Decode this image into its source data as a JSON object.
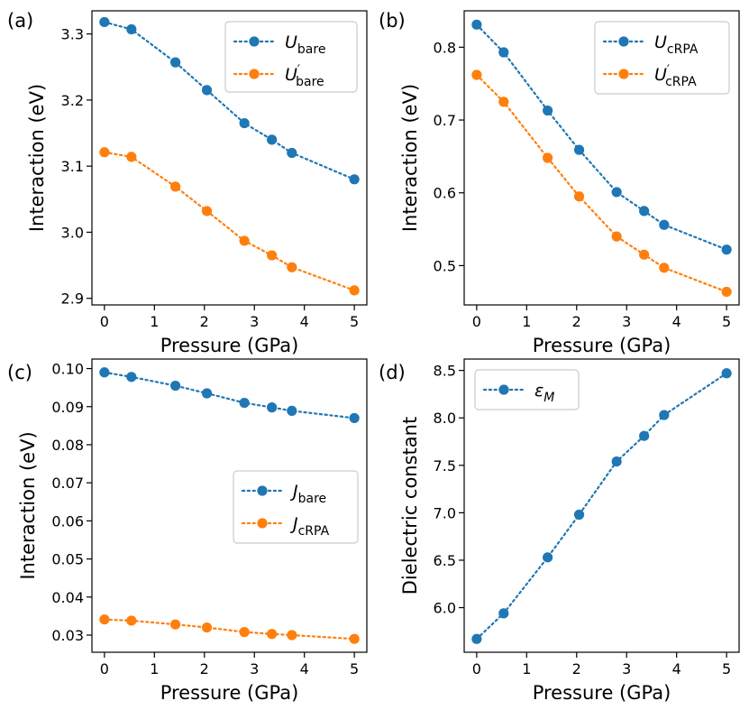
{
  "figure": {
    "panels": [
      "(a)",
      "(b)",
      "(c)",
      "(d)"
    ]
  },
  "colors": {
    "series_blue": "#1f77b4",
    "series_orange": "#ff7f0e",
    "axis": "#000000",
    "legend_border": "#cccccc"
  },
  "chart_data": [
    {
      "type": "line",
      "panel_label": "(a)",
      "xlabel": "Pressure (GPa)",
      "ylabel": "Interaction (eV)",
      "xlim": [
        -0.25,
        5.25
      ],
      "ylim": [
        2.89,
        3.335
      ],
      "xticks": [
        0,
        1,
        2,
        3,
        4,
        5
      ],
      "yticks": [
        2.9,
        3.0,
        3.1,
        3.2,
        3.3
      ],
      "ytick_labels": [
        "2.9",
        "3.0",
        "3.1",
        "3.2",
        "3.3"
      ],
      "x": [
        0,
        0.54,
        1.42,
        2.05,
        2.8,
        3.35,
        3.75,
        5.0
      ],
      "legend_position": "upper-right",
      "series": [
        {
          "name": "U_bare",
          "symbol": "U",
          "sub": "bare",
          "prime": false,
          "color": "#1f77b4",
          "values": [
            3.318,
            3.307,
            3.257,
            3.215,
            3.165,
            3.14,
            3.12,
            3.08
          ]
        },
        {
          "name": "U'_bare",
          "symbol": "U",
          "sub": "bare",
          "prime": true,
          "color": "#ff7f0e",
          "values": [
            3.121,
            3.114,
            3.069,
            3.032,
            2.987,
            2.965,
            2.947,
            2.912
          ]
        }
      ]
    },
    {
      "type": "line",
      "panel_label": "(b)",
      "xlabel": "Pressure (GPa)",
      "ylabel": "Interaction (eV)",
      "xlim": [
        -0.25,
        5.25
      ],
      "ylim": [
        0.446,
        0.85
      ],
      "xticks": [
        0,
        1,
        2,
        3,
        4,
        5
      ],
      "yticks": [
        0.5,
        0.6,
        0.7,
        0.8
      ],
      "ytick_labels": [
        "0.5",
        "0.6",
        "0.7",
        "0.8"
      ],
      "x": [
        0,
        0.54,
        1.42,
        2.05,
        2.8,
        3.35,
        3.75,
        5.0
      ],
      "legend_position": "upper-right",
      "series": [
        {
          "name": "U_cRPA",
          "symbol": "U",
          "sub": "cRPA",
          "prime": false,
          "color": "#1f77b4",
          "values": [
            0.831,
            0.793,
            0.713,
            0.659,
            0.601,
            0.575,
            0.556,
            0.522
          ]
        },
        {
          "name": "U'_cRPA",
          "symbol": "U",
          "sub": "cRPA",
          "prime": true,
          "color": "#ff7f0e",
          "values": [
            0.762,
            0.725,
            0.648,
            0.595,
            0.54,
            0.515,
            0.497,
            0.464
          ]
        }
      ]
    },
    {
      "type": "line",
      "panel_label": "(c)",
      "xlabel": "Pressure (GPa)",
      "ylabel": "Interaction (eV)",
      "xlim": [
        -0.25,
        5.25
      ],
      "ylim": [
        0.0255,
        0.1025
      ],
      "xticks": [
        0,
        1,
        2,
        3,
        4,
        5
      ],
      "yticks": [
        0.03,
        0.04,
        0.05,
        0.06,
        0.07,
        0.08,
        0.09,
        0.1
      ],
      "ytick_labels": [
        "0.03",
        "0.04",
        "0.05",
        "0.06",
        "0.07",
        "0.08",
        "0.09",
        "0.10"
      ],
      "x": [
        0,
        0.54,
        1.42,
        2.05,
        2.8,
        3.35,
        3.75,
        5.0
      ],
      "legend_position": "center-right",
      "series": [
        {
          "name": "J_bare",
          "symbol": "J",
          "sub": "bare",
          "prime": false,
          "color": "#1f77b4",
          "values": [
            0.099,
            0.0978,
            0.0955,
            0.0935,
            0.091,
            0.0898,
            0.0889,
            0.087
          ]
        },
        {
          "name": "J_cRPA",
          "symbol": "J",
          "sub": "cRPA",
          "prime": false,
          "color": "#ff7f0e",
          "values": [
            0.0341,
            0.0338,
            0.0328,
            0.032,
            0.0308,
            0.0303,
            0.03,
            0.029
          ]
        }
      ]
    },
    {
      "type": "line",
      "panel_label": "(d)",
      "xlabel": "Pressure (GPa)",
      "ylabel": "Dielectric constant",
      "xlim": [
        -0.25,
        5.25
      ],
      "ylim": [
        5.53,
        8.62
      ],
      "xticks": [
        0,
        1,
        2,
        3,
        4,
        5
      ],
      "yticks": [
        6.0,
        6.5,
        7.0,
        7.5,
        8.0,
        8.5
      ],
      "ytick_labels": [
        "6.0",
        "6.5",
        "7.0",
        "7.5",
        "8.0",
        "8.5"
      ],
      "x": [
        0,
        0.54,
        1.42,
        2.05,
        2.8,
        3.35,
        3.75,
        5.0
      ],
      "legend_position": "upper-left",
      "series": [
        {
          "name": "epsilon_M",
          "symbol": "ε",
          "sub": "M",
          "prime": false,
          "color": "#1f77b4",
          "values": [
            5.67,
            5.94,
            6.53,
            6.98,
            7.54,
            7.81,
            8.03,
            8.47
          ]
        }
      ]
    }
  ]
}
